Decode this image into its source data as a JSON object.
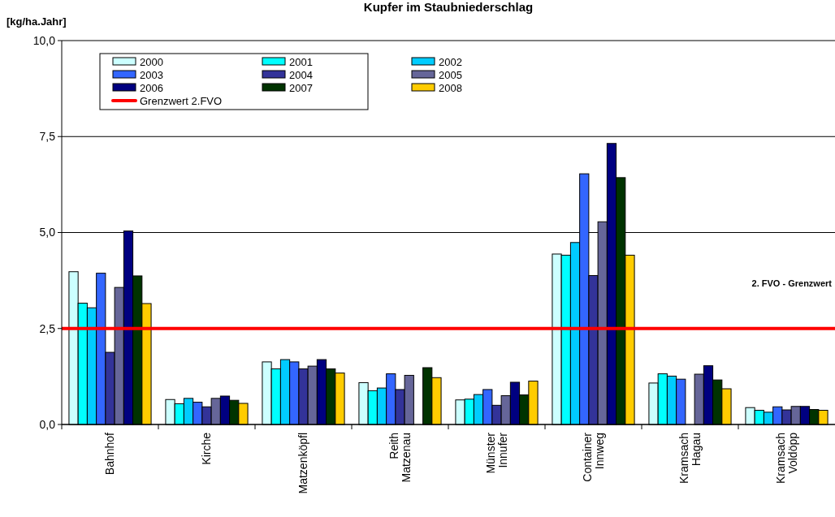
{
  "chart_data": {
    "type": "bar",
    "title": "Kupfer im Staubniederschlag",
    "ylabel": "[kg/ha.Jahr]",
    "categories": [
      "Bahnhof",
      "Kirche",
      "Matzenköpfl",
      "Reith\nMatzenau",
      "Münster\nInnufer",
      "Container\nInnweg",
      "Kramsach\nHagau",
      "Kramsach\nVoldöpp"
    ],
    "series": [
      {
        "name": "2000",
        "color": "#ccffff",
        "values": [
          3.98,
          0.65,
          1.63,
          1.09,
          0.64,
          4.44,
          1.08,
          0.44
        ]
      },
      {
        "name": "2001",
        "color": "#00ffff",
        "values": [
          3.16,
          0.54,
          1.45,
          0.88,
          0.66,
          4.41,
          1.32,
          0.37
        ]
      },
      {
        "name": "2002",
        "color": "#00ccff",
        "values": [
          3.04,
          0.68,
          1.69,
          0.95,
          0.78,
          4.74,
          1.26,
          0.32
        ]
      },
      {
        "name": "2003",
        "color": "#3366ff",
        "values": [
          3.94,
          0.58,
          1.63,
          1.32,
          0.91,
          6.53,
          1.18,
          0.46
        ]
      },
      {
        "name": "2004",
        "color": "#333399",
        "values": [
          1.88,
          0.46,
          1.45,
          0.91,
          0.5,
          3.88,
          null,
          0.38
        ]
      },
      {
        "name": "2005",
        "color": "#666699",
        "values": [
          3.57,
          0.68,
          1.52,
          1.28,
          0.75,
          5.28,
          1.31,
          0.47
        ]
      },
      {
        "name": "2006",
        "color": "#000080",
        "values": [
          5.04,
          0.74,
          1.69,
          null,
          1.1,
          7.32,
          1.53,
          0.47
        ]
      },
      {
        "name": "2007",
        "color": "#003300",
        "values": [
          3.87,
          0.63,
          1.45,
          1.48,
          0.77,
          6.43,
          1.16,
          0.39
        ]
      },
      {
        "name": "2008",
        "color": "#ffcc00",
        "values": [
          3.15,
          0.55,
          1.34,
          1.22,
          1.13,
          4.41,
          0.93,
          0.37
        ]
      }
    ],
    "ylim": [
      0,
      10
    ],
    "yticks": [
      {
        "value": 0,
        "label": "0,0"
      },
      {
        "value": 2.5,
        "label": "2,5"
      },
      {
        "value": 5,
        "label": "5,0"
      },
      {
        "value": 7.5,
        "label": "7,5"
      },
      {
        "value": 10,
        "label": "10,0"
      }
    ],
    "grid": "y",
    "legend": "top left",
    "ref_lines": [
      {
        "axis": "y",
        "value": 2.5,
        "label": "Grenzwert 2.FVO",
        "color": "#ff0000"
      }
    ],
    "annotations": [
      "2. FVO - Grenzwert"
    ]
  }
}
